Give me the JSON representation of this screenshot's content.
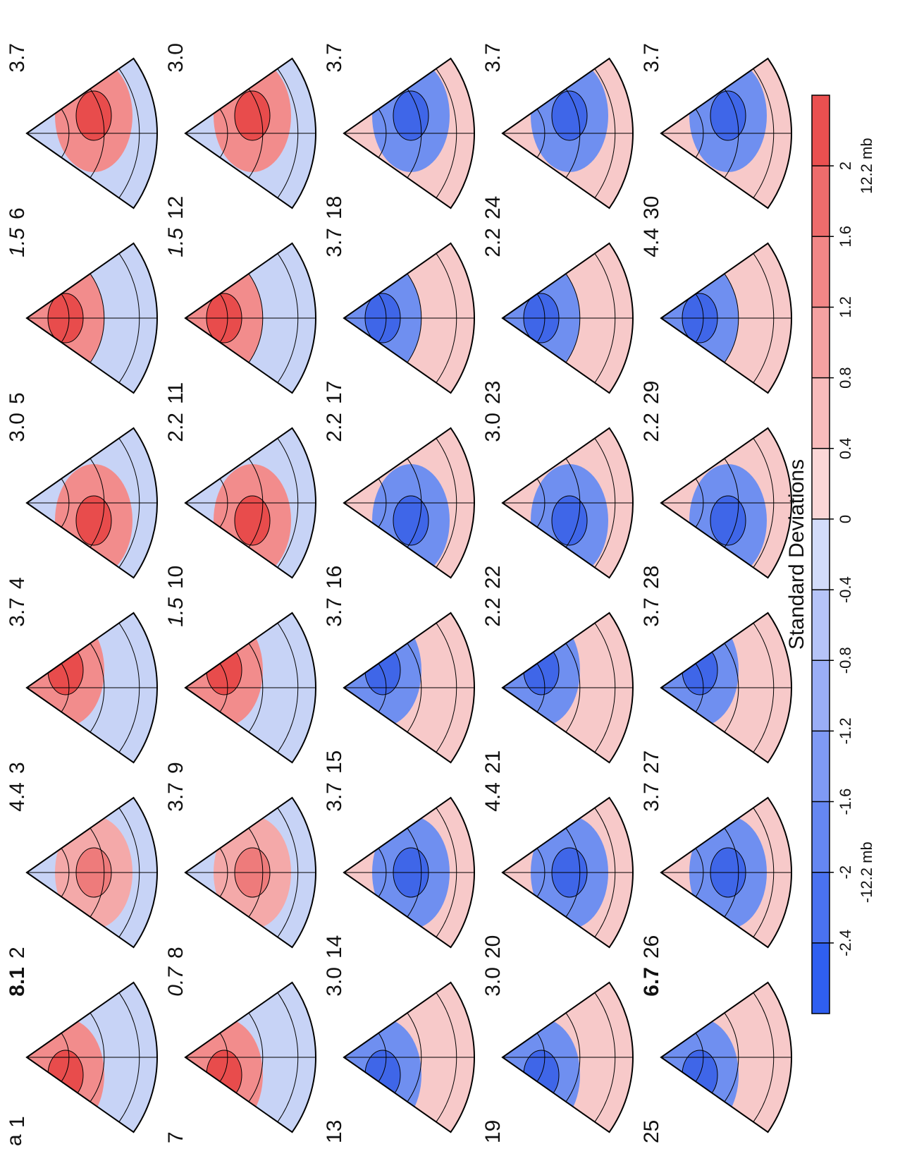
{
  "figure_label": "a",
  "panels": [
    {
      "label": "1",
      "frequency": "8.1",
      "style": "bold"
    },
    {
      "label": "2",
      "frequency": "4.4"
    },
    {
      "label": "3",
      "frequency": "3.7"
    },
    {
      "label": "4",
      "frequency": "3.0"
    },
    {
      "label": "5",
      "frequency": "1.5",
      "style": "italic"
    },
    {
      "label": "6",
      "frequency": "3.7"
    },
    {
      "label": "7",
      "frequency": "0.7",
      "style": "italic"
    },
    {
      "label": "8",
      "frequency": "3.7"
    },
    {
      "label": "9",
      "frequency": "1.5",
      "style": "italic"
    },
    {
      "label": "10",
      "frequency": "2.2"
    },
    {
      "label": "11",
      "frequency": "1.5",
      "style": "italic"
    },
    {
      "label": "12",
      "frequency": "3.0"
    },
    {
      "label": "13",
      "frequency": "3.0"
    },
    {
      "label": "14",
      "frequency": "3.7"
    },
    {
      "label": "15",
      "frequency": "3.7"
    },
    {
      "label": "16",
      "frequency": "2.2"
    },
    {
      "label": "17",
      "frequency": "3.7"
    },
    {
      "label": "18",
      "frequency": "3.7"
    },
    {
      "label": "19",
      "frequency": "3.0"
    },
    {
      "label": "20",
      "frequency": "4.4"
    },
    {
      "label": "21",
      "frequency": "2.2"
    },
    {
      "label": "22",
      "frequency": "3.0"
    },
    {
      "label": "23",
      "frequency": "2.2"
    },
    {
      "label": "24",
      "frequency": "3.7"
    },
    {
      "label": "25",
      "frequency": "6.7",
      "style": "bold"
    },
    {
      "label": "26",
      "frequency": "3.7"
    },
    {
      "label": "27",
      "frequency": "3.7"
    },
    {
      "label": "28",
      "frequency": "2.2"
    },
    {
      "label": "29",
      "frequency": "4.4"
    },
    {
      "label": "30",
      "frequency": "3.7"
    }
  ],
  "colorbar": {
    "title": "Standard Deviations",
    "lim": [
      -2.8,
      2.4
    ],
    "ticks": [
      -2.4,
      -2,
      -1.6,
      -1.2,
      -0.8,
      -0.4,
      0,
      0.4,
      0.8,
      1.2,
      1.6,
      2
    ],
    "min_label": "-12.2 mb",
    "max_label": "12.2 mb"
  }
}
